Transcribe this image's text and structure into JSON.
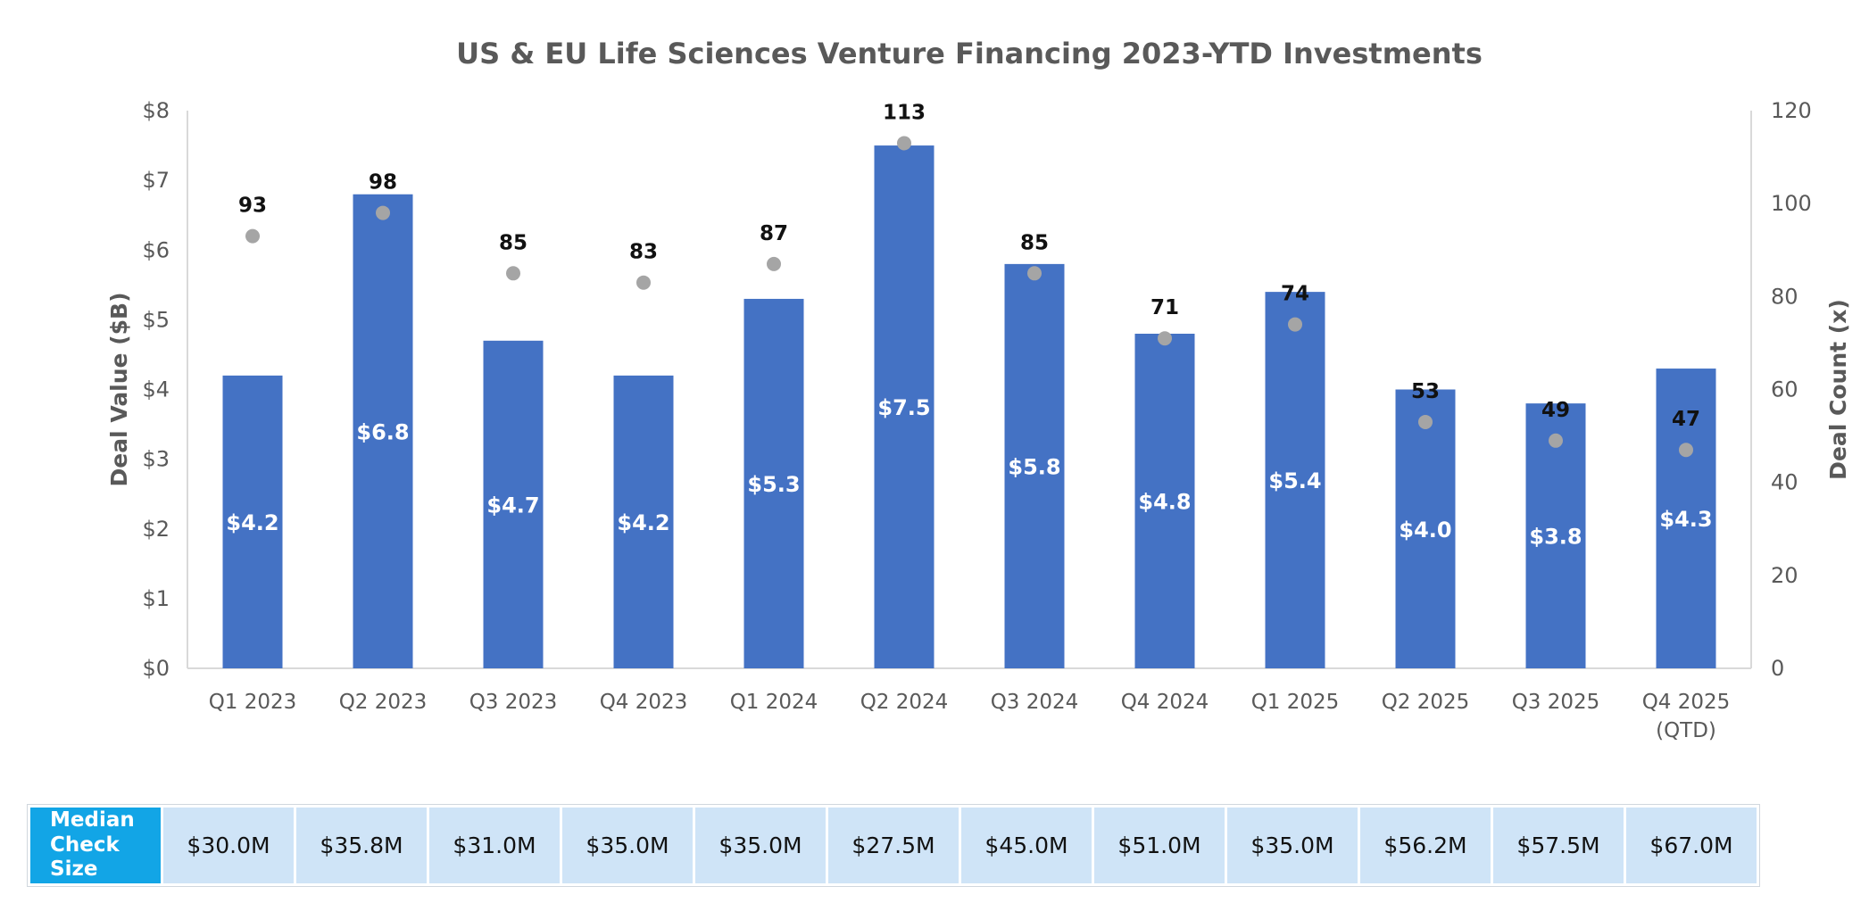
{
  "chart_data": {
    "type": "bar",
    "title": "US & EU Life Sciences Venture Financing 2023-YTD Investments",
    "ylabel": "Deal Value ($B)",
    "ylabel_right": "Deal Count (x)",
    "ylim": [
      0,
      8
    ],
    "ylim_right": [
      0,
      120
    ],
    "grid": false,
    "y_ticks": [
      "$0",
      "$1",
      "$2",
      "$3",
      "$4",
      "$5",
      "$6",
      "$7",
      "$8"
    ],
    "y_right_ticks": [
      "0",
      "20",
      "40",
      "60",
      "80",
      "100",
      "120"
    ],
    "categories": [
      "Q1 2023",
      "Q2 2023",
      "Q3 2023",
      "Q4 2023",
      "Q1 2024",
      "Q2 2024",
      "Q3 2024",
      "Q4 2024",
      "Q1 2025",
      "Q2 2025",
      "Q3 2025",
      "Q4 2025 (QTD)"
    ],
    "category_lines": [
      [
        "Q1 2023"
      ],
      [
        "Q2 2023"
      ],
      [
        "Q3 2023"
      ],
      [
        "Q4 2023"
      ],
      [
        "Q1 2024"
      ],
      [
        "Q2 2024"
      ],
      [
        "Q3 2024"
      ],
      [
        "Q4 2024"
      ],
      [
        "Q1 2025"
      ],
      [
        "Q2 2025"
      ],
      [
        "Q3 2025"
      ],
      [
        "Q4 2025",
        "(QTD)"
      ]
    ],
    "series": [
      {
        "kind": "bar",
        "axis": "left",
        "values": [
          4.2,
          6.8,
          4.7,
          4.2,
          5.3,
          7.5,
          5.8,
          4.8,
          5.4,
          4.0,
          3.8,
          4.3
        ],
        "labels": [
          "$4.2",
          "$6.8",
          "$4.7",
          "$4.2",
          "$5.3",
          "$7.5",
          "$5.8",
          "$4.8",
          "$5.4",
          "$4.0",
          "$3.8",
          "$4.3"
        ],
        "color": "#4472c4"
      },
      {
        "kind": "scatter",
        "axis": "right",
        "values": [
          93,
          98,
          85,
          83,
          87,
          113,
          85,
          71,
          74,
          53,
          49,
          47
        ],
        "labels": [
          "93",
          "98",
          "85",
          "83",
          "87",
          "113",
          "85",
          "71",
          "74",
          "53",
          "49",
          "47"
        ],
        "color": "#a5a5a5"
      }
    ]
  },
  "median_check": {
    "label_line1": "Median",
    "label_line2": "Check Size",
    "values": [
      "$30.0M",
      "$35.8M",
      "$31.0M",
      "$35.0M",
      "$35.0M",
      "$27.5M",
      "$45.0M",
      "$51.0M",
      "$35.0M",
      "$56.2M",
      "$57.5M",
      "$67.0M"
    ]
  },
  "colors": {
    "bar": "#4472c4",
    "dot": "#a5a5a5",
    "axis_text": "#595959",
    "title_text": "#595959",
    "table_header": "#12a5e6",
    "table_cell": "#cfe4f7"
  }
}
